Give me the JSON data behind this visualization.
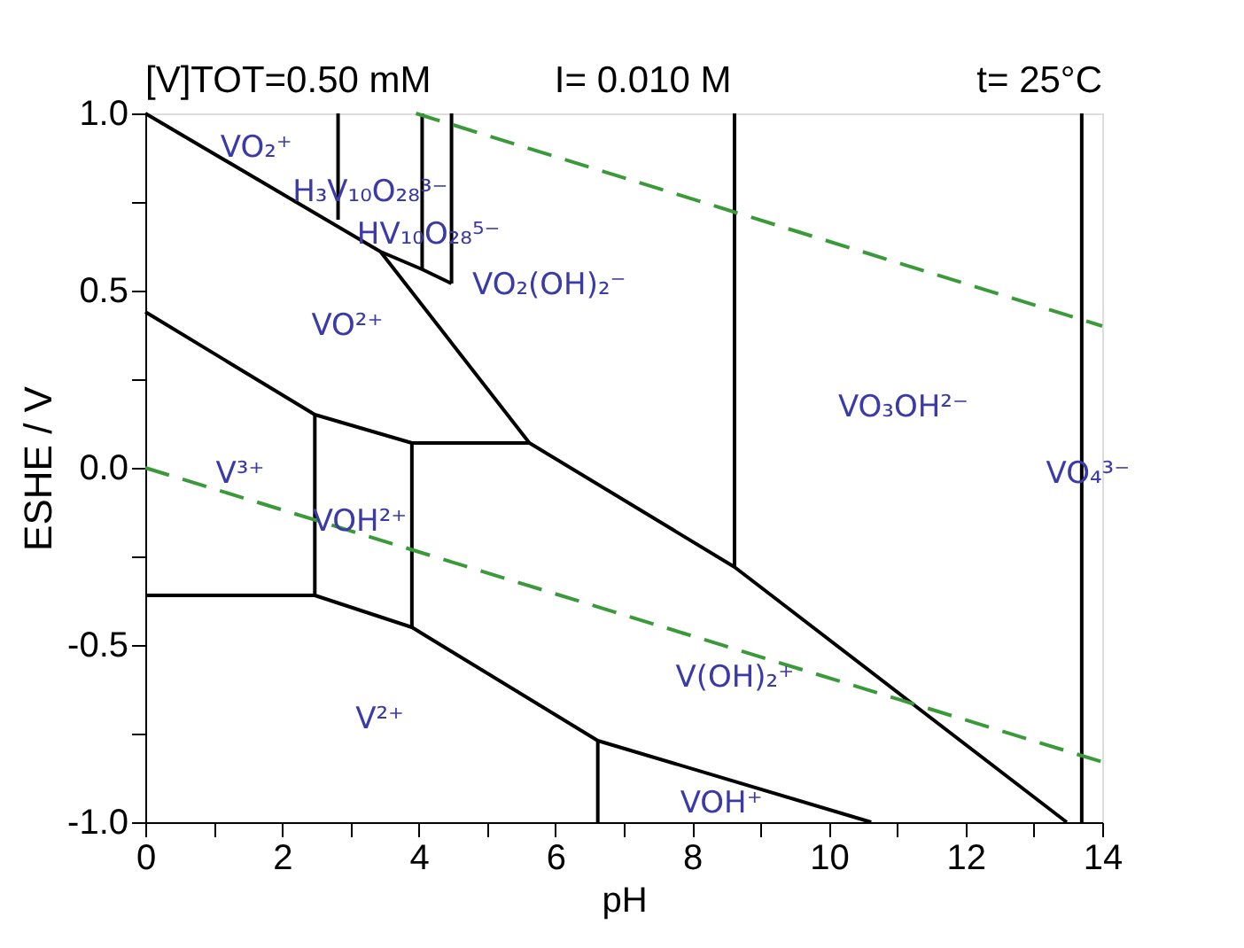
{
  "chart_data": {
    "type": "line",
    "title": "[V]TOT=0.50 mM",
    "xlabel": "pH",
    "ylabel": "ESHE / V",
    "xlim": [
      0,
      14
    ],
    "ylim": [
      -1.0,
      1.0
    ],
    "xticks": [
      0,
      {
        "value": 1,
        "label": null
      },
      2,
      {
        "value": 3,
        "label": null
      },
      4,
      {
        "value": 5,
        "label": null
      },
      6,
      {
        "value": 7,
        "label": null
      },
      8,
      {
        "value": 9,
        "label": null
      },
      10,
      {
        "value": 11,
        "label": null
      },
      12,
      {
        "value": 13,
        "label": null
      },
      14
    ],
    "yticks": [
      {
        "value": -1.0,
        "label": "-1.0"
      },
      {
        "value": -0.75,
        "label": null
      },
      {
        "value": -0.5,
        "label": "-0.5"
      },
      {
        "value": -0.25,
        "label": null
      },
      {
        "value": 0,
        "label": "0.0"
      },
      {
        "value": 0.25,
        "label": null
      },
      {
        "value": 0.5,
        "label": "0.5"
      },
      {
        "value": 0.75,
        "label": null
      },
      {
        "value": 1.0,
        "label": "1.0"
      }
    ],
    "series": [
      {
        "color": "#000000",
        "x": [
          0,
          3.44,
          4.05,
          4.48
        ],
        "values": [
          1.0,
          0.61,
          0.56,
          0.52
        ]
      },
      {
        "color": "#000000",
        "x": [
          2.82,
          2.82
        ],
        "values": [
          1.0,
          0.7
        ]
      },
      {
        "color": "#000000",
        "x": [
          4.05,
          4.05
        ],
        "values": [
          1.0,
          0.56
        ]
      },
      {
        "color": "#000000",
        "x": [
          4.48,
          4.48
        ],
        "values": [
          1.0,
          0.52
        ]
      },
      {
        "color": "#000000",
        "x": [
          3.44,
          5.62,
          8.62,
          13.48
        ],
        "values": [
          0.61,
          0.07,
          -0.28,
          -1.0
        ]
      },
      {
        "color": "#000000",
        "x": [
          0,
          2.48,
          3.9,
          5.62
        ],
        "values": [
          0.44,
          0.15,
          0.07,
          0.07
        ]
      },
      {
        "color": "#000000",
        "x": [
          2.48,
          2.48
        ],
        "values": [
          0.15,
          -0.36
        ]
      },
      {
        "color": "#000000",
        "x": [
          3.9,
          3.9
        ],
        "values": [
          0.07,
          -0.45
        ]
      },
      {
        "color": "#000000",
        "x": [
          0,
          2.48,
          3.9,
          6.62,
          10.62
        ],
        "values": [
          -0.36,
          -0.36,
          -0.45,
          -0.77,
          -1.0
        ]
      },
      {
        "color": "#000000",
        "x": [
          6.62,
          6.62
        ],
        "values": [
          -0.77,
          -1.0
        ]
      },
      {
        "color": "#000000",
        "x": [
          8.62,
          8.62
        ],
        "values": [
          1.0,
          -0.28
        ]
      },
      {
        "color": "#000000",
        "x": [
          13.7,
          13.7
        ],
        "values": [
          1.0,
          -1.0
        ]
      },
      {
        "color": "#3a9a3a",
        "line_style": "dashed",
        "x": [
          0,
          14
        ],
        "values": [
          0.0,
          -0.83
        ]
      },
      {
        "color": "#3a9a3a",
        "line_style": "dashed",
        "x": [
          3.96,
          14
        ],
        "values": [
          1.0,
          0.4
        ]
      }
    ],
    "annotations": [
      "I= 0.010 M",
      "t= 25°C",
      "VO₂⁺",
      "H₃V₁₀O₂₈³⁻",
      "HV₁₀O₂₈⁵⁻",
      "VO₂(OH)₂⁻",
      "VO²⁺",
      "VO₃OH²⁻",
      "VO₄³⁻",
      "V³⁺",
      "VOH²⁺",
      "V(OH)₂⁺",
      "V²⁺",
      "VOH⁺"
    ]
  }
}
